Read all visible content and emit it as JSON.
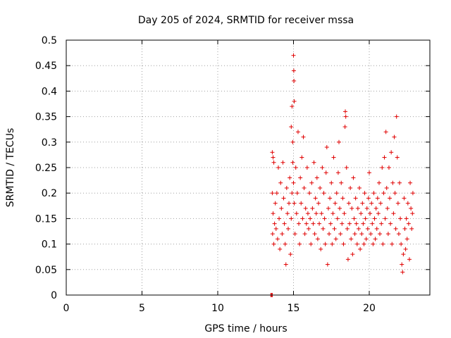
{
  "chart_data": {
    "type": "scatter",
    "title": "Day 205 of 2024, SRMTID for receiver mssa",
    "xlabel": "GPS time / hours",
    "ylabel": "SRMTID / TECUs",
    "xlim": [
      0,
      24
    ],
    "ylim": [
      0,
      0.5
    ],
    "x_ticks": [
      0,
      5,
      10,
      15,
      20
    ],
    "y_ticks": [
      0,
      0.05,
      0.1,
      0.15,
      0.2,
      0.25,
      0.3,
      0.35,
      0.4,
      0.45,
      0.5
    ],
    "x_tick_labels": [
      "0",
      "5",
      "10",
      "15",
      "20"
    ],
    "y_tick_labels": [
      "0",
      "0.05",
      "0.1",
      "0.15",
      "0.2",
      "0.25",
      "0.3",
      "0.35",
      "0.4",
      "0.45",
      "0.5"
    ],
    "grid": true,
    "marker": "+",
    "color": "#e00000",
    "series": [
      {
        "name": "SRMTID",
        "points": [
          [
            13.5,
            0.0
          ],
          [
            13.55,
            0.0
          ],
          [
            13.6,
            0.0
          ],
          [
            13.6,
            0.28
          ],
          [
            13.65,
            0.27
          ],
          [
            13.7,
            0.26
          ],
          [
            13.6,
            0.2
          ],
          [
            13.62,
            0.12
          ],
          [
            13.65,
            0.16
          ],
          [
            13.7,
            0.1
          ],
          [
            13.75,
            0.14
          ],
          [
            13.8,
            0.18
          ],
          [
            13.85,
            0.13
          ],
          [
            13.9,
            0.2
          ],
          [
            13.95,
            0.11
          ],
          [
            14.0,
            0.25
          ],
          [
            14.05,
            0.15
          ],
          [
            14.1,
            0.09
          ],
          [
            14.15,
            0.22
          ],
          [
            14.2,
            0.17
          ],
          [
            14.25,
            0.12
          ],
          [
            14.3,
            0.26
          ],
          [
            14.35,
            0.19
          ],
          [
            14.4,
            0.14
          ],
          [
            14.45,
            0.1
          ],
          [
            14.5,
            0.06
          ],
          [
            14.55,
            0.21
          ],
          [
            14.6,
            0.16
          ],
          [
            14.65,
            0.13
          ],
          [
            14.7,
            0.18
          ],
          [
            14.75,
            0.23
          ],
          [
            14.8,
            0.08
          ],
          [
            14.85,
            0.15
          ],
          [
            14.9,
            0.2
          ],
          [
            14.95,
            0.26
          ],
          [
            14.85,
            0.33
          ],
          [
            14.9,
            0.37
          ],
          [
            14.95,
            0.3
          ],
          [
            15.0,
            0.47
          ],
          [
            15.02,
            0.44
          ],
          [
            15.03,
            0.42
          ],
          [
            15.05,
            0.38
          ],
          [
            15.0,
            0.22
          ],
          [
            15.05,
            0.18
          ],
          [
            15.1,
            0.12
          ],
          [
            15.15,
            0.25
          ],
          [
            15.2,
            0.16
          ],
          [
            15.25,
            0.2
          ],
          [
            15.3,
            0.32
          ],
          [
            15.35,
            0.14
          ],
          [
            15.4,
            0.1
          ],
          [
            15.45,
            0.23
          ],
          [
            15.5,
            0.18
          ],
          [
            15.55,
            0.27
          ],
          [
            15.6,
            0.15
          ],
          [
            15.65,
            0.31
          ],
          [
            15.7,
            0.21
          ],
          [
            15.75,
            0.12
          ],
          [
            15.8,
            0.17
          ],
          [
            15.85,
            0.14
          ],
          [
            15.9,
            0.25
          ],
          [
            15.95,
            0.16
          ],
          [
            16.0,
            0.13
          ],
          [
            16.05,
            0.2
          ],
          [
            16.1,
            0.15
          ],
          [
            16.15,
            0.1
          ],
          [
            16.2,
            0.22
          ],
          [
            16.25,
            0.17
          ],
          [
            16.3,
            0.14
          ],
          [
            16.35,
            0.26
          ],
          [
            16.4,
            0.12
          ],
          [
            16.45,
            0.19
          ],
          [
            16.5,
            0.16
          ],
          [
            16.55,
            0.23
          ],
          [
            16.6,
            0.11
          ],
          [
            16.65,
            0.18
          ],
          [
            16.7,
            0.14
          ],
          [
            16.75,
            0.21
          ],
          [
            16.8,
            0.09
          ],
          [
            16.85,
            0.16
          ],
          [
            16.9,
            0.25
          ],
          [
            16.95,
            0.13
          ],
          [
            17.0,
            0.2
          ],
          [
            17.05,
            0.15
          ],
          [
            17.1,
            0.1
          ],
          [
            17.15,
            0.24
          ],
          [
            17.2,
            0.29
          ],
          [
            17.25,
            0.06
          ],
          [
            17.3,
            0.17
          ],
          [
            17.35,
            0.12
          ],
          [
            17.4,
            0.19
          ],
          [
            17.45,
            0.14
          ],
          [
            17.5,
            0.22
          ],
          [
            17.55,
            0.1
          ],
          [
            17.6,
            0.16
          ],
          [
            17.65,
            0.27
          ],
          [
            17.7,
            0.13
          ],
          [
            17.75,
            0.18
          ],
          [
            17.8,
            0.11
          ],
          [
            17.85,
            0.2
          ],
          [
            17.9,
            0.15
          ],
          [
            17.95,
            0.24
          ],
          [
            18.0,
            0.3
          ],
          [
            18.05,
            0.17
          ],
          [
            18.1,
            0.12
          ],
          [
            18.15,
            0.22
          ],
          [
            18.2,
            0.14
          ],
          [
            18.25,
            0.19
          ],
          [
            18.3,
            0.1
          ],
          [
            18.35,
            0.16
          ],
          [
            18.4,
            0.33
          ],
          [
            18.42,
            0.36
          ],
          [
            18.45,
            0.35
          ],
          [
            18.5,
            0.25
          ],
          [
            18.55,
            0.13
          ],
          [
            18.6,
            0.07
          ],
          [
            18.65,
            0.18
          ],
          [
            18.7,
            0.14
          ],
          [
            18.75,
            0.21
          ],
          [
            18.8,
            0.11
          ],
          [
            18.85,
            0.17
          ],
          [
            18.9,
            0.08
          ],
          [
            18.95,
            0.23
          ],
          [
            19.0,
            0.15
          ],
          [
            19.05,
            0.12
          ],
          [
            19.1,
            0.19
          ],
          [
            19.15,
            0.14
          ],
          [
            19.2,
            0.1
          ],
          [
            19.25,
            0.17
          ],
          [
            19.3,
            0.13
          ],
          [
            19.35,
            0.21
          ],
          [
            19.4,
            0.09
          ],
          [
            19.45,
            0.16
          ],
          [
            19.5,
            0.12
          ],
          [
            19.55,
            0.18
          ],
          [
            19.6,
            0.14
          ],
          [
            19.65,
            0.1
          ],
          [
            19.7,
            0.2
          ],
          [
            19.75,
            0.15
          ],
          [
            19.8,
            0.11
          ],
          [
            19.85,
            0.17
          ],
          [
            19.9,
            0.13
          ],
          [
            19.95,
            0.19
          ],
          [
            20.0,
            0.24
          ],
          [
            20.05,
            0.16
          ],
          [
            20.1,
            0.12
          ],
          [
            20.15,
            0.18
          ],
          [
            20.2,
            0.14
          ],
          [
            20.25,
            0.1
          ],
          [
            20.3,
            0.2
          ],
          [
            20.35,
            0.15
          ],
          [
            20.4,
            0.11
          ],
          [
            20.45,
            0.17
          ],
          [
            20.5,
            0.13
          ],
          [
            20.55,
            0.19
          ],
          [
            20.6,
            0.16
          ],
          [
            20.65,
            0.22
          ],
          [
            20.7,
            0.12
          ],
          [
            20.75,
            0.18
          ],
          [
            20.8,
            0.14
          ],
          [
            20.85,
            0.25
          ],
          [
            20.9,
            0.1
          ],
          [
            20.95,
            0.2
          ],
          [
            21.0,
            0.27
          ],
          [
            21.05,
            0.15
          ],
          [
            21.1,
            0.32
          ],
          [
            21.15,
            0.21
          ],
          [
            21.2,
            0.17
          ],
          [
            21.25,
            0.12
          ],
          [
            21.3,
            0.25
          ],
          [
            21.35,
            0.19
          ],
          [
            21.4,
            0.14
          ],
          [
            21.45,
            0.28
          ],
          [
            21.5,
            0.1
          ],
          [
            21.55,
            0.22
          ],
          [
            21.6,
            0.16
          ],
          [
            21.65,
            0.31
          ],
          [
            21.7,
            0.2
          ],
          [
            21.75,
            0.13
          ],
          [
            21.8,
            0.35
          ],
          [
            21.85,
            0.27
          ],
          [
            21.9,
            0.18
          ],
          [
            21.95,
            0.12
          ],
          [
            22.0,
            0.22
          ],
          [
            22.05,
            0.15
          ],
          [
            22.1,
            0.1
          ],
          [
            22.15,
            0.06
          ],
          [
            22.2,
            0.045
          ],
          [
            22.25,
            0.08
          ],
          [
            22.3,
            0.19
          ],
          [
            22.35,
            0.13
          ],
          [
            22.4,
            0.09
          ],
          [
            22.45,
            0.15
          ],
          [
            22.5,
            0.11
          ],
          [
            22.55,
            0.18
          ],
          [
            22.6,
            0.14
          ],
          [
            22.65,
            0.07
          ],
          [
            22.7,
            0.22
          ],
          [
            22.75,
            0.17
          ],
          [
            22.8,
            0.13
          ],
          [
            22.85,
            0.16
          ],
          [
            22.88,
            0.2
          ]
        ]
      }
    ]
  }
}
